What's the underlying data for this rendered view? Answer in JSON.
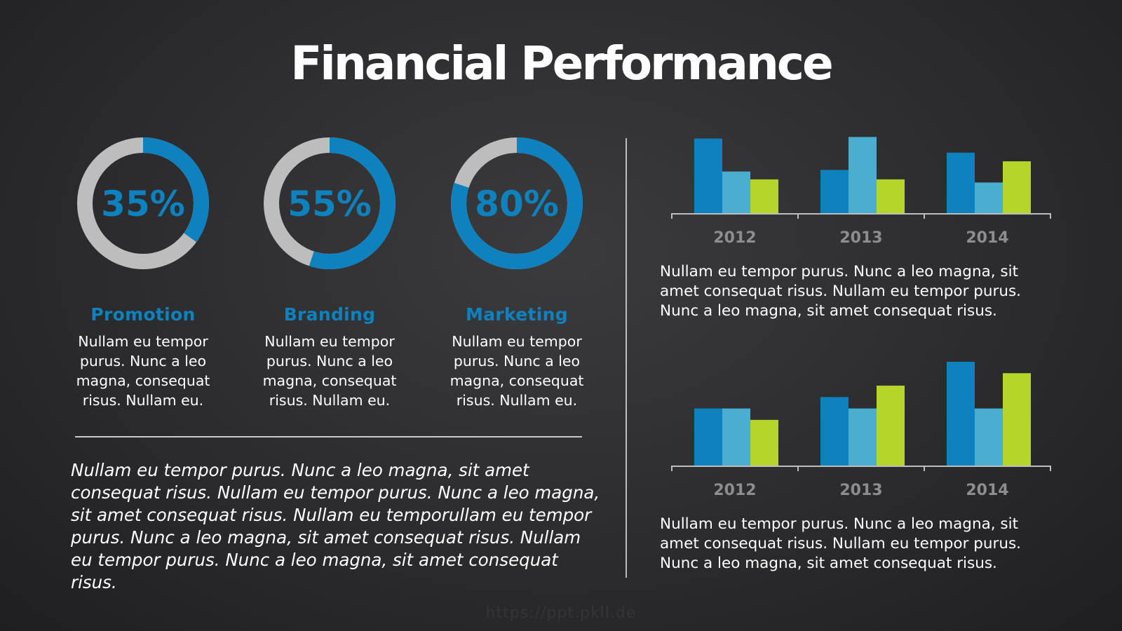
{
  "title": "Financial Performance",
  "colors": {
    "blue": "#0e81bf",
    "light_blue": "#4aaed0",
    "green": "#b6d52a",
    "gray": "#bdbdbd",
    "axis_label": "#8d8d8d"
  },
  "donuts": [
    {
      "value": 35,
      "label": "35%",
      "heading": "Promotion",
      "text": "Nullam eu tempor purus. Nunc a leo magna, consequat risus. Nullam eu."
    },
    {
      "value": 55,
      "label": "55%",
      "heading": "Branding",
      "text": "Nullam eu tempor purus. Nunc a leo magna, consequat risus. Nullam eu."
    },
    {
      "value": 80,
      "label": "80%",
      "heading": "Marketing",
      "text": "Nullam eu tempor purus. Nunc a leo magna, consequat risus. Nullam eu."
    }
  ],
  "italic_text": "Nullam eu tempor purus. Nunc a leo magna, sit amet consequat risus. Nullam eu tempor purus. Nunc a leo magna, sit amet consequat risus. Nullam eu temporullam eu tempor purus. Nunc a leo magna, sit amet consequat risus. Nullam eu tempor purus. Nunc a leo magna, sit amet consequat risus.",
  "chart_data": [
    {
      "type": "bar",
      "categories": [
        "2012",
        "2013",
        "2014"
      ],
      "series": [
        {
          "values": [
            95,
            55,
            77
          ]
        },
        {
          "values": [
            53,
            97,
            39
          ]
        },
        {
          "values": [
            43,
            43,
            66
          ]
        }
      ],
      "ylim": [
        0,
        100
      ],
      "grid": false,
      "text": "Nullam eu tempor purus. Nunc a leo magna, sit amet consequat risus. Nullam eu tempor purus. Nunc a leo magna, sit amet consequat risus."
    },
    {
      "type": "bar",
      "categories": [
        "2012",
        "2013",
        "2014"
      ],
      "series": [
        {
          "values": [
            55,
            66,
            100
          ]
        },
        {
          "values": [
            55,
            55,
            55
          ]
        },
        {
          "values": [
            44,
            77,
            89
          ]
        }
      ],
      "ylim": [
        0,
        100
      ],
      "grid": false,
      "text": "Nullam eu tempor purus. Nunc a leo magna, sit amet consequat risus. Nullam eu tempor purus. Nunc a leo magna, sit amet consequat risus."
    }
  ],
  "watermark": "https://ppt.pkll.de"
}
